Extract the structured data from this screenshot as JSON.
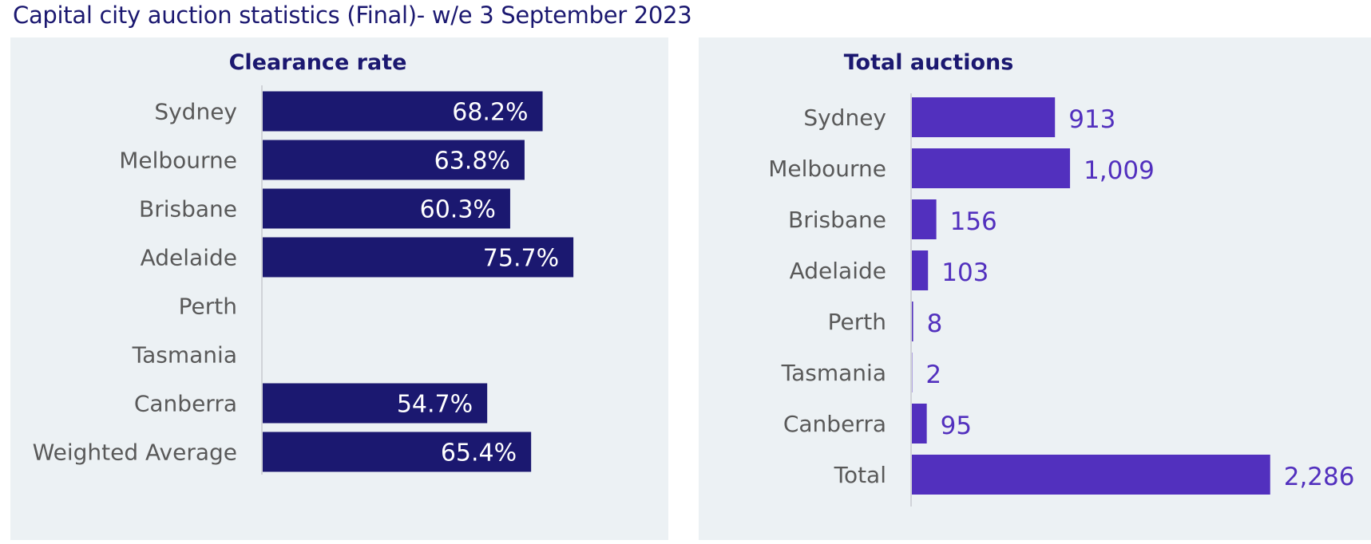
{
  "page_title": "Capital city auction statistics (Final)- w/e 3 September 2023",
  "colors": {
    "title": "#1b1870",
    "panel_bg": "#ecf1f4",
    "clearance_bar": "#1b1870",
    "auctions_bar": "#5230be",
    "category_text": "#595959"
  },
  "chart_data": [
    {
      "type": "bar",
      "orientation": "horizontal",
      "title": "Clearance rate",
      "categories": [
        "Sydney",
        "Melbourne",
        "Brisbane",
        "Adelaide",
        "Perth",
        "Tasmania",
        "Canberra",
        "Weighted Average"
      ],
      "values": [
        68.2,
        63.8,
        60.3,
        75.7,
        null,
        null,
        54.7,
        65.4
      ],
      "labels": [
        "68.2%",
        "63.8%",
        "60.3%",
        "75.7%",
        "",
        "",
        "54.7%",
        "65.4%"
      ],
      "xlim": [
        0,
        100
      ],
      "grid": false,
      "legend": "none"
    },
    {
      "type": "bar",
      "orientation": "horizontal",
      "title": "Total auctions",
      "categories": [
        "Sydney",
        "Melbourne",
        "Brisbane",
        "Adelaide",
        "Perth",
        "Tasmania",
        "Canberra",
        "Total"
      ],
      "values": [
        913,
        1009,
        156,
        103,
        8,
        2,
        95,
        2286
      ],
      "labels": [
        "913",
        "1,009",
        "156",
        "103",
        "8",
        "2",
        "95",
        "2,286"
      ],
      "xlim": [
        0,
        2400
      ],
      "grid": false,
      "legend": "none"
    }
  ]
}
